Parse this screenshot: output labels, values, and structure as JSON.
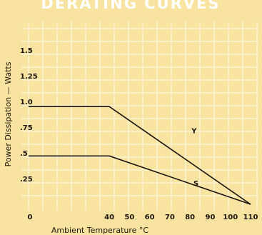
{
  "chart_data": {
    "type": "line",
    "title": "DERATING CURVES",
    "xlabel": "Ambient Temperature  °C",
    "ylabel": "Power Dissipation — Watts",
    "xlim": [
      0,
      110
    ],
    "ylim": [
      0,
      1.6
    ],
    "x_ticks": [
      0,
      40,
      50,
      60,
      70,
      80,
      90,
      100,
      110
    ],
    "x_tick_labels": [
      "0",
      "40",
      "50",
      "60",
      "70",
      "80",
      "90",
      "100",
      "110"
    ],
    "y_ticks": [
      0.25,
      0.5,
      0.75,
      1.0,
      1.25,
      1.5
    ],
    "y_tick_labels": [
      ".25",
      ".5",
      ".75",
      "1.0",
      "1.25",
      "1.5"
    ],
    "grid": true,
    "series": [
      {
        "name": "Y",
        "x": [
          0,
          40,
          110
        ],
        "y": [
          0.95,
          0.95,
          0.0
        ]
      },
      {
        "name": "S",
        "x": [
          0,
          40,
          110
        ],
        "y": [
          0.47,
          0.47,
          0.0
        ]
      }
    ],
    "colors": {
      "background": "#f8e4a0",
      "grid": "#fbf0c8",
      "line": "#1c1408",
      "title": "#ffffff"
    }
  }
}
